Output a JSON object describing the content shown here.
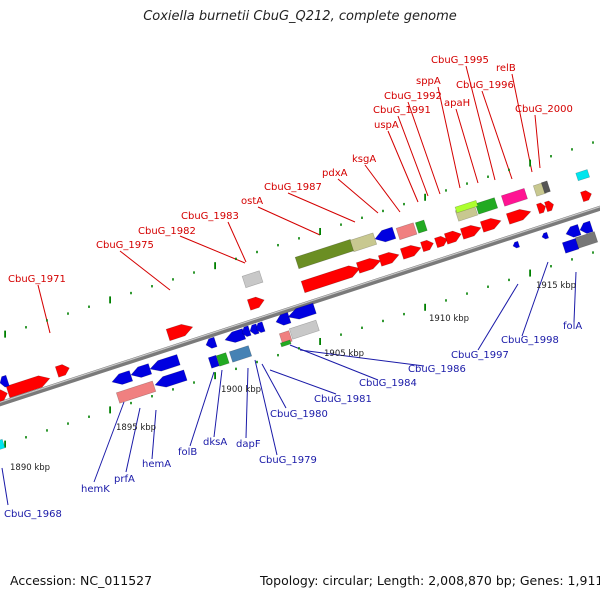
{
  "title": "Coxiella burnetii CbuG_Q212, complete genome",
  "footer": {
    "accession": "Accession: NC_011527",
    "summary": "Topology: circular; Length: 2,008,870 bp; Genes: 1,911"
  },
  "colors": {
    "forward_gene": "#ff0000",
    "reverse_gene": "#0000e0",
    "tick": "#008000",
    "label_top": "#d40000",
    "label_bottom": "#1a1aa8",
    "backbone": "#888888"
  },
  "kbp_marks": [
    "1890 kbp",
    "1895 kbp",
    "1900 kbp",
    "1905 kbp",
    "1910 kbp",
    "1915 kbp"
  ],
  "genes_top": [
    "CbuG_1971",
    "CbuG_1975",
    "CbuG_1982",
    "CbuG_1983",
    "ostA",
    "CbuG_1987",
    "pdxA",
    "ksgA",
    "uspA",
    "CbuG_1991",
    "CbuG_1992",
    "sppA",
    "apaH",
    "CbuG_1995",
    "CbuG_1996",
    "relB",
    "CbuG_2000"
  ],
  "genes_bottom": [
    "CbuG_1968",
    "hemK",
    "prfA",
    "hemA",
    "folB",
    "dksA",
    "dapF",
    "CbuG_1979",
    "CbuG_1980",
    "CbuG_1981",
    "CbuG_1984",
    "CbuG_1986",
    "CbuG_1997",
    "CbuG_1998",
    "folA"
  ]
}
